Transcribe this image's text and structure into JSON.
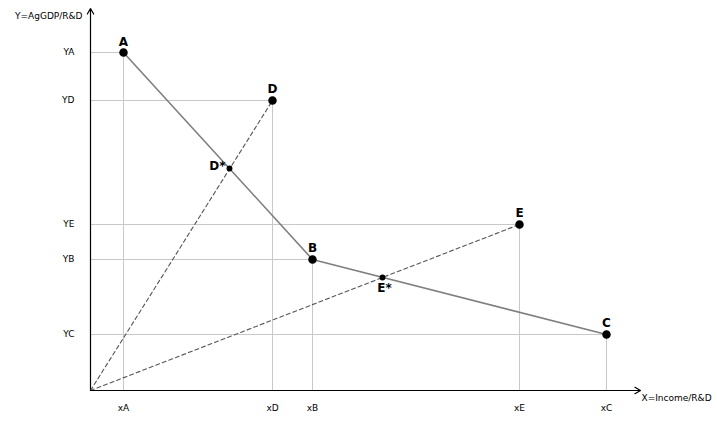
{
  "chart_data": {
    "type": "line",
    "x_label": "X=Income/R&D",
    "y_label": "Y=AgGDP/R&D",
    "xlim": [
      0,
      550
    ],
    "ylim": [
      0,
      382
    ],
    "xticks": [
      {
        "value": 33,
        "label": "xA"
      },
      {
        "value": 182,
        "label": "xD"
      },
      {
        "value": 222,
        "label": "xB"
      },
      {
        "value": 429,
        "label": "xE"
      },
      {
        "value": 516,
        "label": "xC"
      }
    ],
    "yticks": [
      {
        "value": 338,
        "label": "YA"
      },
      {
        "value": 290,
        "label": "YD"
      },
      {
        "value": 166,
        "label": "YE"
      },
      {
        "value": 131,
        "label": "YB"
      },
      {
        "value": 56,
        "label": "YC"
      }
    ],
    "grid": true,
    "tick_labels": true,
    "series": [
      {
        "type": "line",
        "line_style": "solid",
        "color": "#7f7f7f",
        "x": [
          33,
          222,
          516
        ],
        "y": [
          338,
          131,
          56
        ]
      },
      {
        "type": "line",
        "line_style": "dashed",
        "color": "#555555",
        "x": [
          0,
          182
        ],
        "y": [
          0,
          290
        ]
      },
      {
        "type": "line",
        "line_style": "dashed",
        "color": "#555555",
        "x": [
          0,
          429
        ],
        "y": [
          0,
          166
        ]
      },
      {
        "type": "scatter",
        "marker": "circle",
        "color": "#000000",
        "data_labels": true,
        "points": [
          {
            "label": "A",
            "x": 33,
            "y": 338
          },
          {
            "label": "B",
            "x": 222,
            "y": 131
          },
          {
            "label": "C",
            "x": 516,
            "y": 56
          },
          {
            "label": "D",
            "x": 182,
            "y": 290
          },
          {
            "label": "E",
            "x": 429,
            "y": 166
          }
        ]
      },
      {
        "type": "scatter",
        "marker": "dot",
        "color": "#000000",
        "data_labels": true,
        "points": [
          {
            "label": "D*",
            "x": 139,
            "y": 222
          },
          {
            "label": "E*",
            "x": 292,
            "y": 113
          }
        ]
      }
    ]
  }
}
